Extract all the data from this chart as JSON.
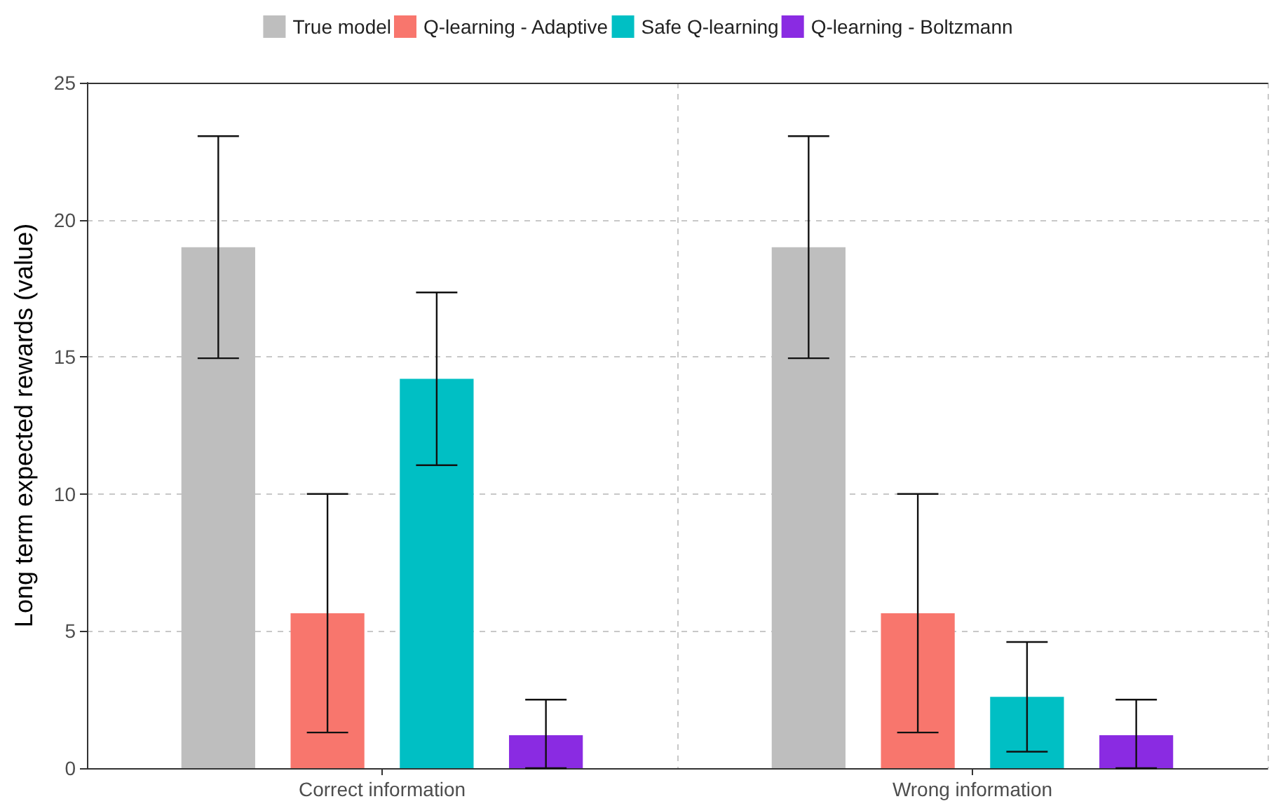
{
  "chart_data": {
    "type": "bar",
    "ylabel": "Long term expected rewards (value)",
    "categories": [
      "Correct information",
      "Wrong information"
    ],
    "series": [
      {
        "name": "True model",
        "color": "#bebebe",
        "values": [
          19,
          19
        ],
        "errors": [
          [
            14.95,
            23.05
          ],
          [
            14.95,
            23.05
          ]
        ]
      },
      {
        "name": "Q-learning - Adaptive",
        "color": "#f8766d",
        "values": [
          5.65,
          5.65
        ],
        "errors": [
          [
            1.3,
            10
          ],
          [
            1.3,
            10
          ]
        ]
      },
      {
        "name": "Safe Q-learning",
        "color": "#00bfc4",
        "values": [
          14.2,
          2.6
        ],
        "errors": [
          [
            11.05,
            17.35
          ],
          [
            0.6,
            4.6
          ]
        ]
      },
      {
        "name": "Q-learning - Boltzmann",
        "color": "#8a2be2",
        "values": [
          1.2,
          1.2
        ],
        "errors": [
          [
            0,
            2.5
          ],
          [
            0,
            2.5
          ]
        ]
      }
    ],
    "ylim": [
      0,
      25
    ],
    "yticks": [
      0,
      5,
      10,
      15,
      20,
      25
    ],
    "grid": true,
    "legend": "top"
  }
}
